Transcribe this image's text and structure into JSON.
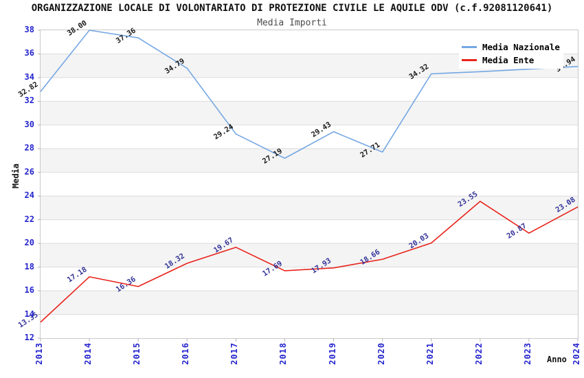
{
  "title": "ORGANIZZAZIONE LOCALE DI VOLONTARIATO DI PROTEZIONE CIVILE LE AQUILE ODV (c.f.92081120641)",
  "subtitle": "Media Importi",
  "legend": {
    "position": "top-right",
    "items": [
      {
        "label": "Media Nazionale",
        "color": "#74a7e3"
      },
      {
        "label": "Media Ente",
        "color": "#e8221a"
      }
    ]
  },
  "chart_data": {
    "type": "line",
    "x": [
      2013,
      2014,
      2015,
      2016,
      2017,
      2018,
      2019,
      2020,
      2021,
      2022,
      2023,
      2024
    ],
    "xlabel": "Anno",
    "ylabel": "Media",
    "ylim": [
      12,
      38
    ],
    "ytick_step": 2,
    "grid": true,
    "alternating_bands": true,
    "series": [
      {
        "name": "Media Nazionale",
        "color": "#74a7e3",
        "label_color": "#1a1a1a",
        "values": [
          32.82,
          38.0,
          37.36,
          34.79,
          29.24,
          27.19,
          29.43,
          27.71,
          34.32,
          34.5,
          34.72,
          34.94
        ],
        "labels": [
          "32.82",
          "38.00",
          "37.36",
          "34.79",
          "29.24",
          "27.19",
          "29.43",
          "27.71",
          "34.32",
          "",
          "",
          "34.94"
        ]
      },
      {
        "name": "Media Ente",
        "color": "#e8221a",
        "label_color": "#333399",
        "values": [
          13.35,
          17.18,
          16.36,
          18.32,
          19.67,
          17.69,
          17.93,
          18.66,
          20.03,
          23.55,
          20.87,
          23.08
        ],
        "labels": [
          "13.35",
          "17.18",
          "16.36",
          "18.32",
          "19.67",
          "17.69",
          "17.93",
          "18.66",
          "20.03",
          "23.55",
          "20.87",
          "23.08"
        ]
      }
    ],
    "colors": {
      "band": "#f4f4f4",
      "gridline": "#dcdcdc",
      "plot_border": "#c9c9c9",
      "tick": "#b5b5b5",
      "axis_tick_label": "#2424ce"
    }
  }
}
